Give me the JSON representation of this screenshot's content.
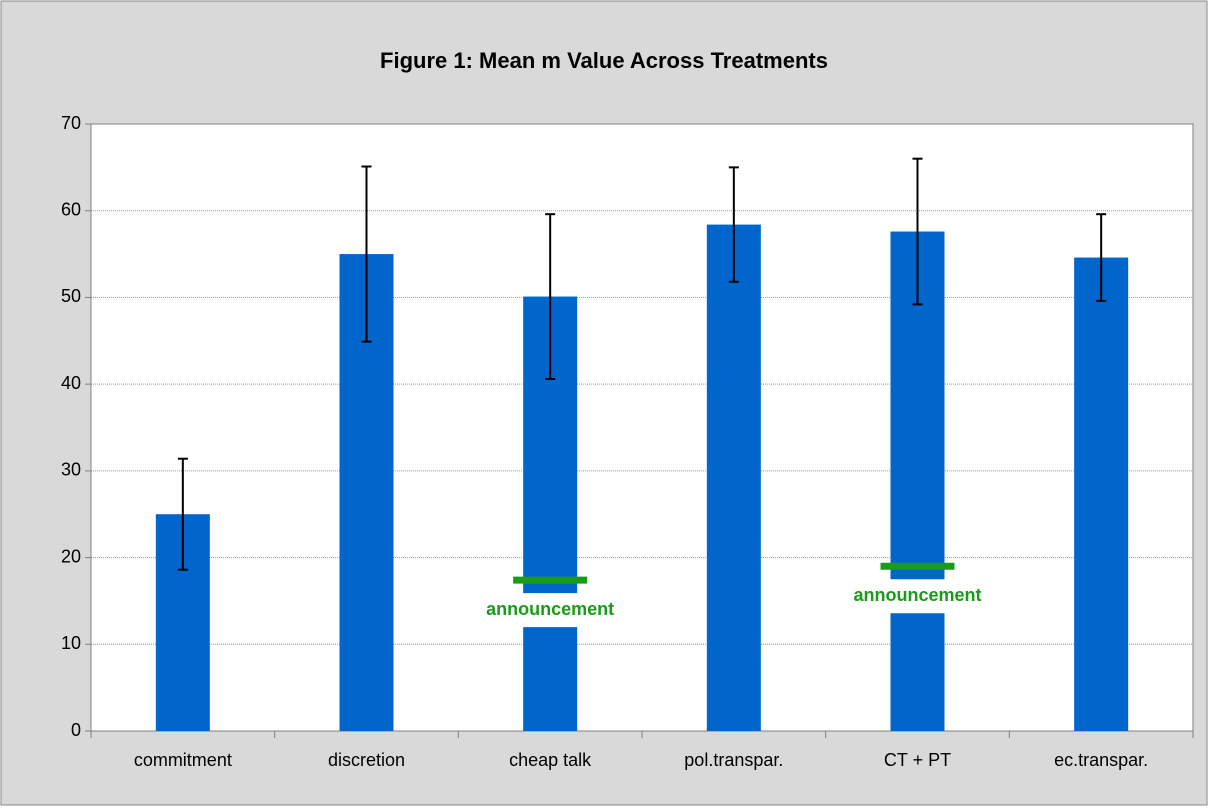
{
  "chart_data": {
    "type": "bar",
    "title": "Figure 1: Mean m Value Across Treatments",
    "categories": [
      "commitment",
      "discretion",
      "cheap talk",
      "pol.transpar.",
      "CT + PT",
      "ec.transpar."
    ],
    "series": [
      {
        "name": "mean m",
        "color": "#0066cc",
        "values": [
          25,
          55,
          50.1,
          58.4,
          57.6,
          54.6
        ],
        "errors": [
          6.4,
          10.1,
          9.5,
          6.6,
          8.4,
          5
        ]
      },
      {
        "name": "announcement",
        "color": "#1a9c1a",
        "values": [
          null,
          null,
          17.4,
          null,
          19,
          null
        ]
      }
    ],
    "ylim": [
      0,
      70
    ],
    "yticks": [
      0,
      10,
      20,
      30,
      40,
      50,
      60,
      70
    ],
    "grid": true
  }
}
